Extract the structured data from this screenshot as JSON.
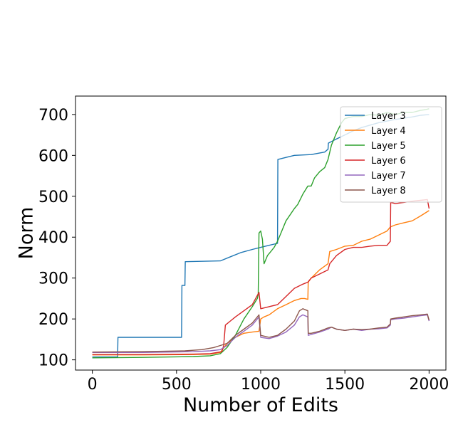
{
  "chart_data": {
    "type": "line",
    "title": "",
    "xlabel": "Number of Edits",
    "ylabel": "Norm",
    "xlim": [
      -100,
      2100
    ],
    "ylim": [
      75,
      745
    ],
    "x_ticks": [
      0,
      500,
      1000,
      1500,
      2000
    ],
    "y_ticks": [
      100,
      200,
      300,
      400,
      500,
      600,
      700
    ],
    "grid": false,
    "legend_position": "top-right",
    "series": [
      {
        "name": "Layer 3",
        "color": "#1f77b4",
        "points": [
          [
            0,
            107
          ],
          [
            150,
            107
          ],
          [
            152,
            155
          ],
          [
            530,
            155
          ],
          [
            532,
            282
          ],
          [
            550,
            282
          ],
          [
            552,
            340
          ],
          [
            760,
            342
          ],
          [
            820,
            352
          ],
          [
            880,
            362
          ],
          [
            950,
            370
          ],
          [
            1000,
            375
          ],
          [
            1050,
            380
          ],
          [
            1100,
            385
          ],
          [
            1102,
            590
          ],
          [
            1150,
            595
          ],
          [
            1200,
            600
          ],
          [
            1300,
            602
          ],
          [
            1380,
            608
          ],
          [
            1400,
            615
          ],
          [
            1402,
            630
          ],
          [
            1450,
            640
          ],
          [
            1500,
            650
          ],
          [
            1550,
            660
          ],
          [
            1600,
            668
          ],
          [
            1700,
            680
          ],
          [
            1800,
            688
          ],
          [
            1900,
            694
          ],
          [
            1950,
            698
          ],
          [
            2000,
            700
          ]
        ]
      },
      {
        "name": "Layer 4",
        "color": "#ff7f0e",
        "points": [
          [
            0,
            112
          ],
          [
            300,
            112
          ],
          [
            600,
            113
          ],
          [
            700,
            114
          ],
          [
            760,
            118
          ],
          [
            800,
            140
          ],
          [
            850,
            155
          ],
          [
            900,
            165
          ],
          [
            950,
            168
          ],
          [
            990,
            170
          ],
          [
            1000,
            200
          ],
          [
            1020,
            205
          ],
          [
            1050,
            210
          ],
          [
            1100,
            225
          ],
          [
            1150,
            235
          ],
          [
            1200,
            245
          ],
          [
            1240,
            250
          ],
          [
            1260,
            250
          ],
          [
            1280,
            248
          ],
          [
            1282,
            290
          ],
          [
            1300,
            300
          ],
          [
            1350,
            320
          ],
          [
            1400,
            335
          ],
          [
            1410,
            365
          ],
          [
            1450,
            370
          ],
          [
            1500,
            378
          ],
          [
            1550,
            380
          ],
          [
            1600,
            390
          ],
          [
            1650,
            395
          ],
          [
            1700,
            405
          ],
          [
            1750,
            415
          ],
          [
            1770,
            425
          ],
          [
            1800,
            430
          ],
          [
            1850,
            435
          ],
          [
            1900,
            440
          ],
          [
            1950,
            452
          ],
          [
            2000,
            465
          ]
        ]
      },
      {
        "name": "Layer 5",
        "color": "#2ca02c",
        "points": [
          [
            0,
            105
          ],
          [
            300,
            106
          ],
          [
            600,
            108
          ],
          [
            700,
            110
          ],
          [
            760,
            115
          ],
          [
            800,
            130
          ],
          [
            850,
            160
          ],
          [
            900,
            200
          ],
          [
            950,
            230
          ],
          [
            980,
            250
          ],
          [
            985,
            260
          ],
          [
            990,
            410
          ],
          [
            1000,
            415
          ],
          [
            1010,
            395
          ],
          [
            1020,
            335
          ],
          [
            1040,
            355
          ],
          [
            1060,
            365
          ],
          [
            1080,
            375
          ],
          [
            1100,
            390
          ],
          [
            1120,
            410
          ],
          [
            1150,
            440
          ],
          [
            1200,
            470
          ],
          [
            1220,
            480
          ],
          [
            1250,
            505
          ],
          [
            1280,
            525
          ],
          [
            1300,
            525
          ],
          [
            1320,
            545
          ],
          [
            1350,
            560
          ],
          [
            1380,
            570
          ],
          [
            1400,
            590
          ],
          [
            1420,
            625
          ],
          [
            1450,
            655
          ],
          [
            1480,
            680
          ],
          [
            1500,
            690
          ],
          [
            1550,
            695
          ],
          [
            1600,
            695
          ],
          [
            1650,
            700
          ],
          [
            1700,
            698
          ],
          [
            1750,
            705
          ],
          [
            1800,
            700
          ],
          [
            1850,
            705
          ],
          [
            1900,
            705
          ],
          [
            1950,
            710
          ],
          [
            1980,
            712
          ],
          [
            2000,
            714
          ]
        ]
      },
      {
        "name": "Layer 6",
        "color": "#d62728",
        "points": [
          [
            0,
            113
          ],
          [
            300,
            113
          ],
          [
            600,
            114
          ],
          [
            700,
            115
          ],
          [
            770,
            120
          ],
          [
            780,
            135
          ],
          [
            790,
            185
          ],
          [
            820,
            195
          ],
          [
            850,
            205
          ],
          [
            900,
            220
          ],
          [
            950,
            235
          ],
          [
            990,
            265
          ],
          [
            1000,
            225
          ],
          [
            1050,
            230
          ],
          [
            1100,
            235
          ],
          [
            1150,
            255
          ],
          [
            1200,
            275
          ],
          [
            1250,
            285
          ],
          [
            1280,
            290
          ],
          [
            1300,
            300
          ],
          [
            1350,
            310
          ],
          [
            1400,
            320
          ],
          [
            1410,
            335
          ],
          [
            1450,
            355
          ],
          [
            1500,
            370
          ],
          [
            1550,
            375
          ],
          [
            1600,
            375
          ],
          [
            1650,
            378
          ],
          [
            1700,
            380
          ],
          [
            1750,
            380
          ],
          [
            1770,
            390
          ],
          [
            1772,
            485
          ],
          [
            1800,
            482
          ],
          [
            1850,
            485
          ],
          [
            1900,
            488
          ],
          [
            1950,
            490
          ],
          [
            1990,
            492
          ],
          [
            2000,
            470
          ]
        ]
      },
      {
        "name": "Layer 7",
        "color": "#9467bd",
        "points": [
          [
            0,
            118
          ],
          [
            300,
            118
          ],
          [
            600,
            120
          ],
          [
            700,
            122
          ],
          [
            760,
            125
          ],
          [
            800,
            135
          ],
          [
            850,
            155
          ],
          [
            900,
            170
          ],
          [
            950,
            185
          ],
          [
            990,
            205
          ],
          [
            1000,
            155
          ],
          [
            1050,
            152
          ],
          [
            1100,
            158
          ],
          [
            1150,
            168
          ],
          [
            1200,
            185
          ],
          [
            1230,
            205
          ],
          [
            1250,
            210
          ],
          [
            1280,
            205
          ],
          [
            1282,
            160
          ],
          [
            1300,
            162
          ],
          [
            1350,
            168
          ],
          [
            1400,
            175
          ],
          [
            1420,
            180
          ],
          [
            1450,
            175
          ],
          [
            1500,
            172
          ],
          [
            1550,
            175
          ],
          [
            1600,
            172
          ],
          [
            1650,
            175
          ],
          [
            1700,
            176
          ],
          [
            1750,
            178
          ],
          [
            1770,
            185
          ],
          [
            1772,
            198
          ],
          [
            1800,
            200
          ],
          [
            1850,
            202
          ],
          [
            1900,
            205
          ],
          [
            1950,
            208
          ],
          [
            1990,
            210
          ],
          [
            2000,
            195
          ]
        ]
      },
      {
        "name": "Layer 8",
        "color": "#8c564b",
        "points": [
          [
            0,
            119
          ],
          [
            300,
            120
          ],
          [
            550,
            122
          ],
          [
            650,
            125
          ],
          [
            720,
            130
          ],
          [
            760,
            135
          ],
          [
            800,
            140
          ],
          [
            850,
            160
          ],
          [
            900,
            175
          ],
          [
            950,
            190
          ],
          [
            990,
            210
          ],
          [
            1000,
            160
          ],
          [
            1050,
            155
          ],
          [
            1100,
            160
          ],
          [
            1150,
            175
          ],
          [
            1200,
            195
          ],
          [
            1230,
            220
          ],
          [
            1250,
            225
          ],
          [
            1280,
            220
          ],
          [
            1282,
            165
          ],
          [
            1300,
            165
          ],
          [
            1350,
            170
          ],
          [
            1400,
            178
          ],
          [
            1420,
            180
          ],
          [
            1450,
            175
          ],
          [
            1500,
            172
          ],
          [
            1550,
            175
          ],
          [
            1600,
            174
          ],
          [
            1650,
            175
          ],
          [
            1700,
            178
          ],
          [
            1750,
            180
          ],
          [
            1770,
            188
          ],
          [
            1772,
            200
          ],
          [
            1800,
            202
          ],
          [
            1850,
            205
          ],
          [
            1900,
            208
          ],
          [
            1950,
            210
          ],
          [
            1990,
            212
          ],
          [
            2000,
            197
          ]
        ]
      }
    ]
  }
}
